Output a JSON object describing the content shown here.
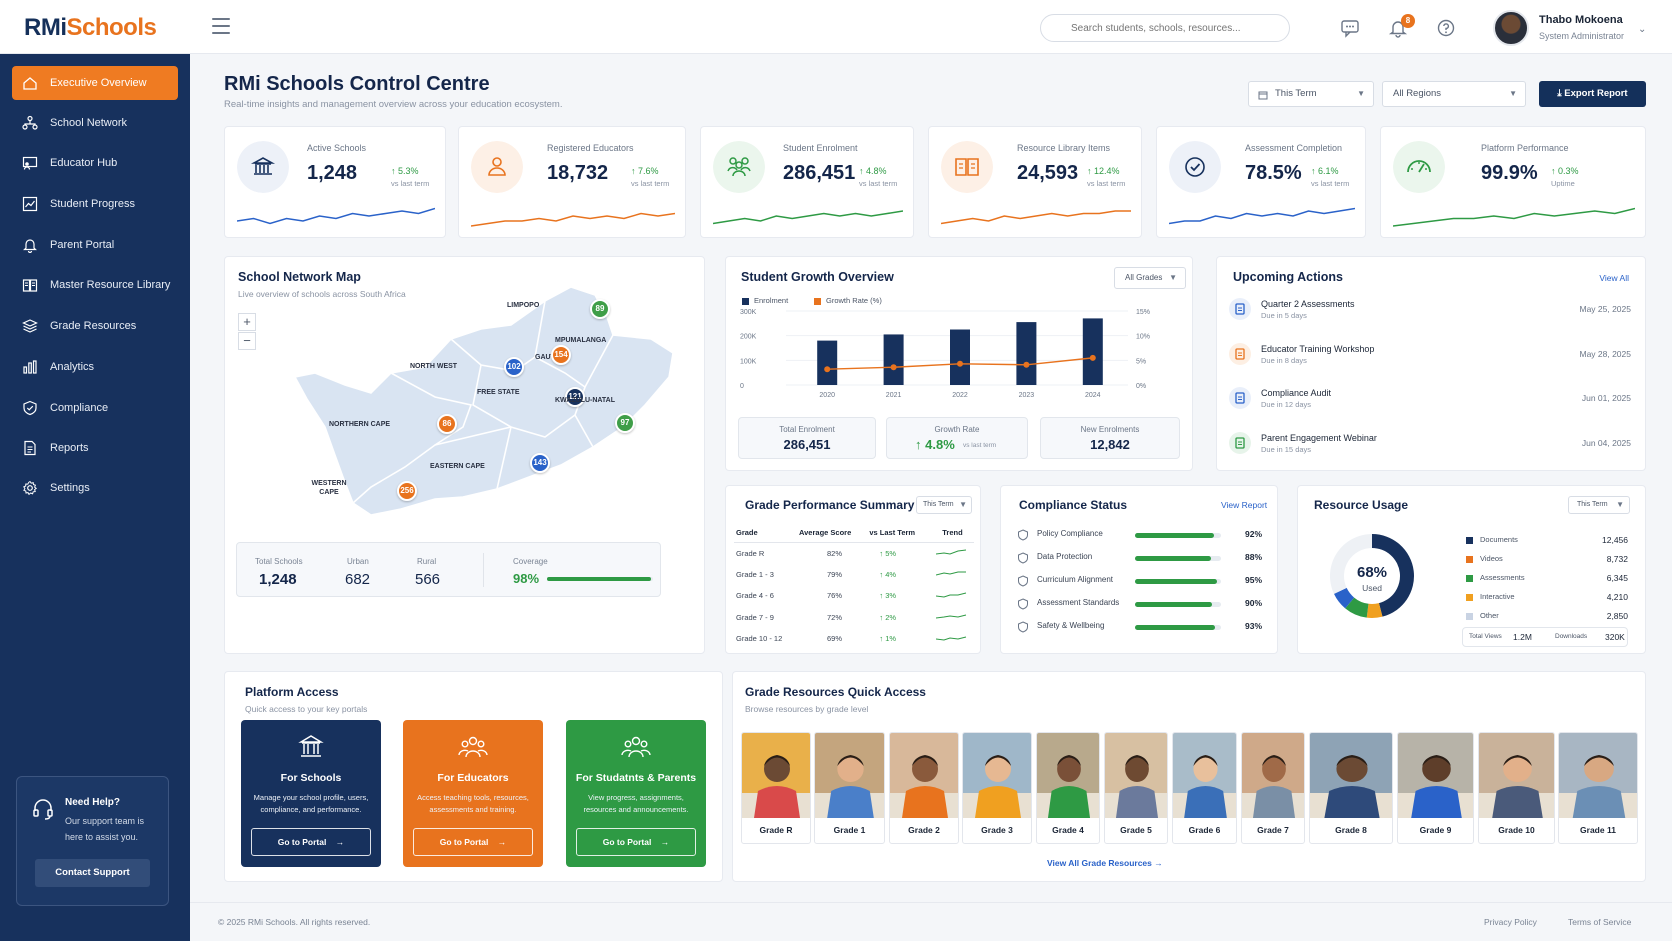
{
  "brand": {
    "part1": "RMi",
    "part2": "Schools"
  },
  "topbar": {
    "search_placeholder": "Search students, schools, resources...",
    "notif_count": "8",
    "user_name": "Thabo Mokoena",
    "user_role": "System Administrator"
  },
  "sidebar": {
    "items": [
      {
        "label": "Executive Overview",
        "icon": "home-icon"
      },
      {
        "label": "School Network",
        "icon": "network-icon"
      },
      {
        "label": "Educator Hub",
        "icon": "educator-icon"
      },
      {
        "label": "Student Progress",
        "icon": "chart-line-icon"
      },
      {
        "label": "Parent Portal",
        "icon": "bell-icon"
      },
      {
        "label": "Master Resource Library",
        "icon": "book-icon"
      },
      {
        "label": "Grade Resources",
        "icon": "layers-icon"
      },
      {
        "label": "Analytics",
        "icon": "bars-icon"
      },
      {
        "label": "Compliance",
        "icon": "shield-icon"
      },
      {
        "label": "Reports",
        "icon": "document-icon"
      },
      {
        "label": "Settings",
        "icon": "gear-icon"
      }
    ],
    "help": {
      "title": "Need Help?",
      "text": "Our support team is here to assist you.",
      "button": "Contact Support"
    }
  },
  "header": {
    "title": "RMi Schools Control Centre",
    "subtitle": "Real-time insights and management overview across your education ecosystem.",
    "period": "This Term",
    "region": "All Regions",
    "export": "Export Report"
  },
  "kpis": [
    {
      "label": "Active Schools",
      "value": "1,248",
      "change": "5.3%",
      "vs": "vs last term",
      "color": "#2a62c9"
    },
    {
      "label": "Registered Educators",
      "value": "18,732",
      "change": "7.6%",
      "vs": "vs last term",
      "color": "#e8731e"
    },
    {
      "label": "Student Enrolment",
      "value": "286,451",
      "change": "4.8%",
      "vs": "vs last term",
      "color": "#2e9a44"
    },
    {
      "label": "Resource Library Items",
      "value": "24,593",
      "change": "12.4%",
      "vs": "vs last term",
      "color": "#e8731e"
    },
    {
      "label": "Assessment Completion",
      "value": "78.5%",
      "change": "6.1%",
      "vs": "vs last term",
      "color": "#2a62c9"
    },
    {
      "label": "Platform Performance",
      "value": "99.9%",
      "change": "0.3%",
      "vs": "Uptime",
      "color": "#2e9a44"
    }
  ],
  "map": {
    "title": "School Network Map",
    "subtitle": "Live overview of schools across South Africa",
    "regions": [
      {
        "name": "LIMPOPO",
        "count": "89",
        "color": "#3f9e48"
      },
      {
        "name": "MPUMALANGA",
        "count": "",
        "color": ""
      },
      {
        "name": "GAUTENG",
        "count": "154",
        "color": "#e8731e"
      },
      {
        "name": "NORTH WEST",
        "count": "102",
        "color": "#2a62c9"
      },
      {
        "name": "FREE STATE",
        "count": "121",
        "color": "#17315d"
      },
      {
        "name": "KWAZULU-NATAL",
        "count": "97",
        "color": "#3f9e48"
      },
      {
        "name": "NORTHERN CAPE",
        "count": "86",
        "color": "#e8731e"
      },
      {
        "name": "EASTERN CAPE",
        "count": "143",
        "color": "#2a62c9"
      },
      {
        "name": "WESTERN CAPE",
        "count": "256",
        "color": "#e8731e"
      }
    ],
    "stats": {
      "total_label": "Total Schools",
      "total": "1,248",
      "urban_label": "Urban",
      "urban": "682",
      "rural_label": "Rural",
      "rural": "566",
      "coverage_label": "Coverage",
      "coverage": "98%",
      "coverage_value": 0.98
    }
  },
  "growth": {
    "title": "Student Growth Overview",
    "filter": "All Grades",
    "legend_enrol": "Enrolment",
    "legend_rate": "Growth Rate (%)",
    "summary": [
      {
        "label": "Total Enrolment",
        "value": "286,451"
      },
      {
        "label": "Growth Rate",
        "value": "4.8%",
        "vs": "vs last term"
      },
      {
        "label": "New Enrolments",
        "value": "12,842"
      }
    ]
  },
  "chart_data": {
    "type": "bar",
    "categories": [
      "2020",
      "2021",
      "2022",
      "2023",
      "2024"
    ],
    "series": [
      {
        "name": "Enrolment",
        "values": [
          180000,
          205000,
          225000,
          255000,
          270000
        ]
      },
      {
        "name": "Growth Rate (%)",
        "values": [
          3.2,
          3.6,
          4.3,
          4.1,
          5.5
        ]
      }
    ],
    "yticks": [
      "300K",
      "200K",
      "100K",
      "0"
    ],
    "y2ticks": [
      "15%",
      "10%",
      "5%",
      "0%"
    ],
    "ylim": [
      0,
      300000
    ],
    "y2lim": [
      0,
      15
    ]
  },
  "actions": {
    "title": "Upcoming Actions",
    "view_all": "View All",
    "items": [
      {
        "title": "Quarter 2 Assessments",
        "due": "Due in 5 days",
        "date": "May 25, 2025",
        "icon": "clipboard-icon",
        "color": "#2a62c9"
      },
      {
        "title": "Educator Training Workshop",
        "due": "Due in 8 days",
        "date": "May 28, 2025",
        "icon": "calendar-icon",
        "color": "#e8731e"
      },
      {
        "title": "Compliance Audit",
        "due": "Due in 12 days",
        "date": "Jun 01, 2025",
        "icon": "audit-icon",
        "color": "#2a62c9"
      },
      {
        "title": "Parent Engagement Webinar",
        "due": "Due in 15 days",
        "date": "Jun 04, 2025",
        "icon": "people-icon",
        "color": "#2e9a44"
      }
    ]
  },
  "grade_perf": {
    "title": "Grade Performance Summary",
    "filter": "This Term",
    "headers": [
      "Grade",
      "Average Score",
      "vs Last Term",
      "Trend"
    ],
    "rows": [
      {
        "grade": "Grade R",
        "score": "82%",
        "change": "5%"
      },
      {
        "grade": "Grade 1 - 3",
        "score": "79%",
        "change": "4%"
      },
      {
        "grade": "Grade 4 - 6",
        "score": "76%",
        "change": "3%"
      },
      {
        "grade": "Grade 7 - 9",
        "score": "72%",
        "change": "2%"
      },
      {
        "grade": "Grade 10 - 12",
        "score": "69%",
        "change": "1%"
      }
    ]
  },
  "compliance": {
    "title": "Compliance Status",
    "view": "View Report",
    "items": [
      {
        "label": "Policy Compliance",
        "pct": "92%",
        "value": 0.92
      },
      {
        "label": "Data Protection",
        "pct": "88%",
        "value": 0.88
      },
      {
        "label": "Curriculum Alignment",
        "pct": "95%",
        "value": 0.95
      },
      {
        "label": "Assessment Standards",
        "pct": "90%",
        "value": 0.9
      },
      {
        "label": "Safety & Wellbeing",
        "pct": "93%",
        "value": 0.93
      }
    ]
  },
  "resource_usage": {
    "title": "Resource Usage",
    "filter": "This Term",
    "center_pct": "68%",
    "center_lbl": "Used",
    "items": [
      {
        "label": "Documents",
        "value": "12,456",
        "color": "#17315d"
      },
      {
        "label": "Videos",
        "value": "8,732",
        "color": "#e8731e"
      },
      {
        "label": "Assessments",
        "value": "6,345",
        "color": "#2e9a44"
      },
      {
        "label": "Interactive",
        "value": "4,210",
        "color": "#f0a020"
      },
      {
        "label": "Other",
        "value": "2,850",
        "color": "#c9d3e3"
      }
    ],
    "views_label": "Total Views",
    "views": "1.2M",
    "downloads_label": "Downloads",
    "downloads": "320K"
  },
  "platform": {
    "title": "Platform Access",
    "subtitle": "Quick access to your key portals",
    "portals": [
      {
        "title": "For Schools",
        "desc": "Manage your school profile, users, compliance, and performance.",
        "button": "Go to Portal",
        "color": "#17315d"
      },
      {
        "title": "For Educators",
        "desc": "Access teaching tools, resources, assessments and training.",
        "button": "Go to Portal",
        "color": "#e8731e"
      },
      {
        "title": "For Studatnts & Parents",
        "desc": "View progress, assignments, resources and announcements.",
        "button": "Go to Portal",
        "color": "#2e9a44"
      }
    ]
  },
  "grades": {
    "title": "Grade Resources Quick Access",
    "subtitle": "Browse resources by grade level",
    "view_all": "View All Grade Resources",
    "items": [
      "Grade R",
      "Grade 1",
      "Grade 2",
      "Grade 3",
      "Grade 4",
      "Grade 5",
      "Grade 6",
      "Grade 7",
      "Grade 8",
      "Grade 9",
      "Grade 10",
      "Grade 11"
    ]
  },
  "footer": {
    "copy": "© 2025 RMi Schools. All rights reserved.",
    "privacy": "Privacy Policy",
    "terms": "Terms of Service"
  }
}
